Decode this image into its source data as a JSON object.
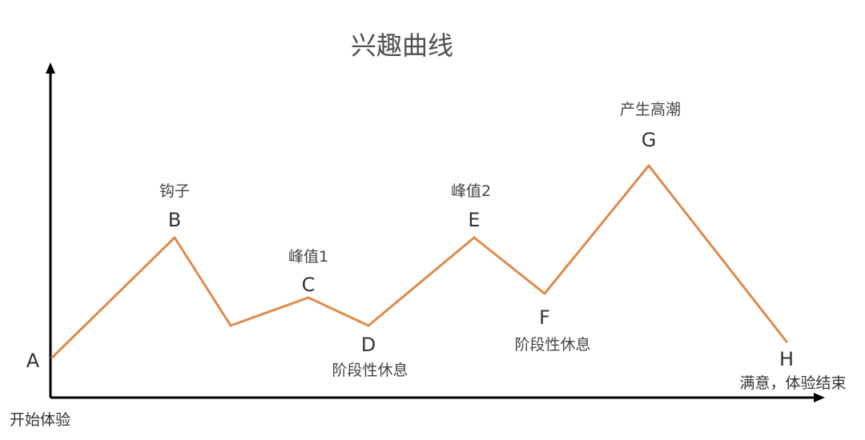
{
  "chart_data": {
    "type": "line",
    "title": "兴趣曲线",
    "x_axis_label": "开始体验",
    "end_label": "满意，体验结束",
    "color": "#E08A4A",
    "points": [
      {
        "letter": "A",
        "y": 0.1,
        "annotation": ""
      },
      {
        "letter": "B",
        "y": 0.4,
        "annotation": "钩子"
      },
      {
        "letter": "",
        "y": 0.18,
        "annotation": ""
      },
      {
        "letter": "C",
        "y": 0.25,
        "annotation": "峰值1"
      },
      {
        "letter": "D",
        "y": 0.18,
        "annotation": "阶段性休息"
      },
      {
        "letter": "E",
        "y": 0.4,
        "annotation": "峰值2"
      },
      {
        "letter": "F",
        "y": 0.26,
        "annotation": "阶段性休息"
      },
      {
        "letter": "G",
        "y": 0.58,
        "annotation": "产生高潮"
      },
      {
        "letter": "H",
        "y": 0.14,
        "annotation": ""
      }
    ]
  }
}
